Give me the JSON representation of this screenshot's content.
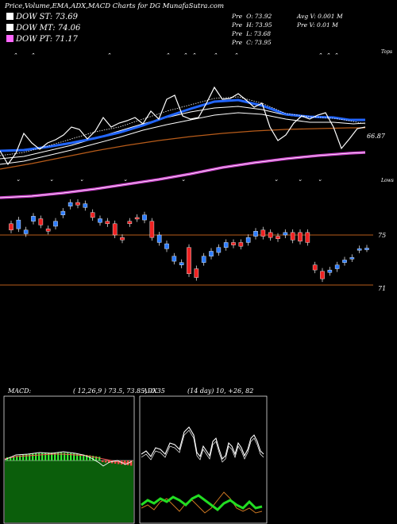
{
  "header": {
    "title": "Price,Volume,EMA,ADX,MACD Charts for DG MunafaSutra.com",
    "prev": [
      {
        "label": "Pre",
        "key": "O:",
        "value": "73.92"
      },
      {
        "label": "Pre",
        "key": "H:",
        "value": "73.95"
      },
      {
        "label": "Pre",
        "key": "L:",
        "value": "73.68"
      },
      {
        "label": "Pre",
        "key": "C:",
        "value": "73.95"
      }
    ],
    "avg_volume": "Avg V: 0.001 M",
    "prev_volume": "Pre  V: 0.01 M"
  },
  "legend": [
    {
      "label": "DOW ST: 73.69",
      "color": "#ffffff"
    },
    {
      "label": "DOW MT: 74.06",
      "color": "#ffffff"
    },
    {
      "label": "DOW PT: 71.17",
      "color": "#ff66ff"
    }
  ],
  "price_panel": {
    "top_label": "Tops",
    "bottom_label": "Lows",
    "ema_value_label": "66.87",
    "level_labels": [
      "75",
      "71"
    ],
    "colors": {
      "ema_fast": "#2266ff",
      "ema_slow": "#cc44cc",
      "level_line": "#b85c1a",
      "brown_ema": "#b85c1a"
    }
  },
  "chart_data": [
    {
      "type": "candlestick",
      "title": "",
      "yticks": [
        75,
        71
      ],
      "levels": [
        75,
        71
      ],
      "candles": [
        {
          "o": 75.4,
          "c": 75.9,
          "dir": "down"
        },
        {
          "o": 75.5,
          "c": 76.2,
          "dir": "up"
        },
        {
          "o": 75.1,
          "c": 75.4,
          "dir": "up"
        },
        {
          "o": 76.1,
          "c": 76.5,
          "dir": "up"
        },
        {
          "o": 76.3,
          "c": 75.8,
          "dir": "down"
        },
        {
          "o": 75.3,
          "c": 75.5,
          "dir": "down"
        },
        {
          "o": 75.7,
          "c": 76.1,
          "dir": "up"
        },
        {
          "o": 76.6,
          "c": 76.9,
          "dir": "up"
        },
        {
          "o": 77.3,
          "c": 77.6,
          "dir": "up"
        },
        {
          "o": 77.6,
          "c": 77.4,
          "dir": "down"
        },
        {
          "o": 77.2,
          "c": 77.5,
          "dir": "up"
        },
        {
          "o": 76.8,
          "c": 76.4,
          "dir": "down"
        },
        {
          "o": 76.0,
          "c": 76.3,
          "dir": "up"
        },
        {
          "o": 76.1,
          "c": 75.9,
          "dir": "down"
        },
        {
          "o": 75.9,
          "c": 75.0,
          "dir": "down"
        },
        {
          "o": 74.6,
          "c": 74.8,
          "dir": "down"
        },
        {
          "o": 76.1,
          "c": 75.9,
          "dir": "down"
        },
        {
          "o": 76.4,
          "c": 76.3,
          "dir": "down"
        },
        {
          "o": 76.2,
          "c": 76.6,
          "dir": "up"
        },
        {
          "o": 76.1,
          "c": 74.8,
          "dir": "down"
        },
        {
          "o": 74.4,
          "c": 75.0,
          "dir": "up"
        },
        {
          "o": 73.9,
          "c": 74.3,
          "dir": "up"
        },
        {
          "o": 72.9,
          "c": 73.3,
          "dir": "up"
        },
        {
          "o": 72.6,
          "c": 72.8,
          "dir": "up"
        },
        {
          "o": 74.0,
          "c": 71.9,
          "dir": "down"
        },
        {
          "o": 72.3,
          "c": 71.6,
          "dir": "down"
        },
        {
          "o": 72.8,
          "c": 73.3,
          "dir": "up"
        },
        {
          "o": 73.3,
          "c": 73.7,
          "dir": "up"
        },
        {
          "o": 73.6,
          "c": 74.0,
          "dir": "up"
        },
        {
          "o": 74.0,
          "c": 74.4,
          "dir": "up"
        },
        {
          "o": 74.4,
          "c": 74.2,
          "dir": "down"
        },
        {
          "o": 74.4,
          "c": 74.1,
          "dir": "down"
        },
        {
          "o": 74.4,
          "c": 74.8,
          "dir": "up"
        },
        {
          "o": 74.9,
          "c": 75.3,
          "dir": "up"
        },
        {
          "o": 75.4,
          "c": 74.9,
          "dir": "down"
        },
        {
          "o": 75.2,
          "c": 74.8,
          "dir": "down"
        },
        {
          "o": 74.9,
          "c": 74.7,
          "dir": "down"
        },
        {
          "o": 75.0,
          "c": 75.2,
          "dir": "up"
        },
        {
          "o": 75.2,
          "c": 74.6,
          "dir": "down"
        },
        {
          "o": 75.2,
          "c": 74.5,
          "dir": "down"
        },
        {
          "o": 75.2,
          "c": 74.4,
          "dir": "down"
        },
        {
          "o": 72.6,
          "c": 72.2,
          "dir": "down"
        },
        {
          "o": 72.1,
          "c": 71.5,
          "dir": "down"
        },
        {
          "o": 72.0,
          "c": 72.2,
          "dir": "up"
        },
        {
          "o": 72.3,
          "c": 72.6,
          "dir": "up"
        },
        {
          "o": 72.8,
          "c": 73.0,
          "dir": "up"
        },
        {
          "o": 73.1,
          "c": 73.2,
          "dir": "up"
        },
        {
          "o": 73.8,
          "c": 73.9,
          "dir": "up"
        },
        {
          "o": 73.9,
          "c": 73.95,
          "dir": "up"
        }
      ]
    },
    {
      "type": "line",
      "title": "MACD:",
      "params": "( 12,26,9 ) 73.5, 73.85, -0.35",
      "colors": {
        "hist": "#22cc22",
        "hist_neg": "#ff3333",
        "macd": "#ffffff",
        "signal": "#ff5555"
      }
    },
    {
      "type": "line",
      "title": "ADX",
      "params": "(14  day) 10,  +26,  82",
      "colors": {
        "adx": "#ffffff",
        "plus_di": "#22dd22",
        "minus_di": "#cc7722"
      }
    }
  ]
}
